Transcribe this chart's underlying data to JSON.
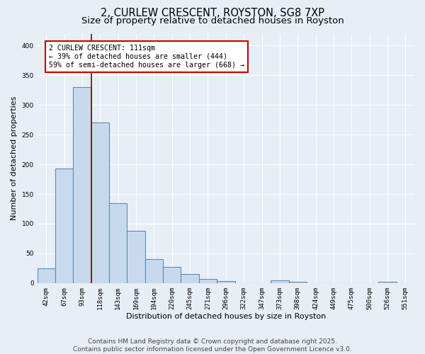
{
  "title1": "2, CURLEW CRESCENT, ROYSTON, SG8 7XP",
  "title2": "Size of property relative to detached houses in Royston",
  "xlabel": "Distribution of detached houses by size in Royston",
  "ylabel": "Number of detached properties",
  "categories": [
    "42sqm",
    "67sqm",
    "93sqm",
    "118sqm",
    "143sqm",
    "169sqm",
    "194sqm",
    "220sqm",
    "245sqm",
    "271sqm",
    "296sqm",
    "322sqm",
    "347sqm",
    "373sqm",
    "398sqm",
    "424sqm",
    "449sqm",
    "475sqm",
    "500sqm",
    "526sqm",
    "551sqm"
  ],
  "values": [
    25,
    193,
    330,
    270,
    135,
    88,
    40,
    27,
    15,
    7,
    3,
    0,
    0,
    4,
    2,
    0,
    0,
    0,
    0,
    2,
    0
  ],
  "bar_color": "#c9d9ec",
  "bar_edge_color": "#5b8db8",
  "bar_edge_width": 0.8,
  "annotation_text": "2 CURLEW CRESCENT: 111sqm\n← 39% of detached houses are smaller (444)\n59% of semi-detached houses are larger (668) →",
  "annotation_box_color": "#ffffff",
  "annotation_box_edge": "#cc0000",
  "annotation_fontsize": 7.2,
  "ylim": [
    0,
    420
  ],
  "yticks": [
    0,
    50,
    100,
    150,
    200,
    250,
    300,
    350,
    400
  ],
  "background_color": "#e8eef5",
  "grid_color": "#ffffff",
  "footer_line1": "Contains HM Land Registry data © Crown copyright and database right 2025.",
  "footer_line2": "Contains public sector information licensed under the Open Government Licence v3.0.",
  "title1_fontsize": 10.5,
  "title2_fontsize": 9.5,
  "xlabel_fontsize": 8,
  "ylabel_fontsize": 8,
  "tick_fontsize": 6.5,
  "footer_fontsize": 6.5
}
